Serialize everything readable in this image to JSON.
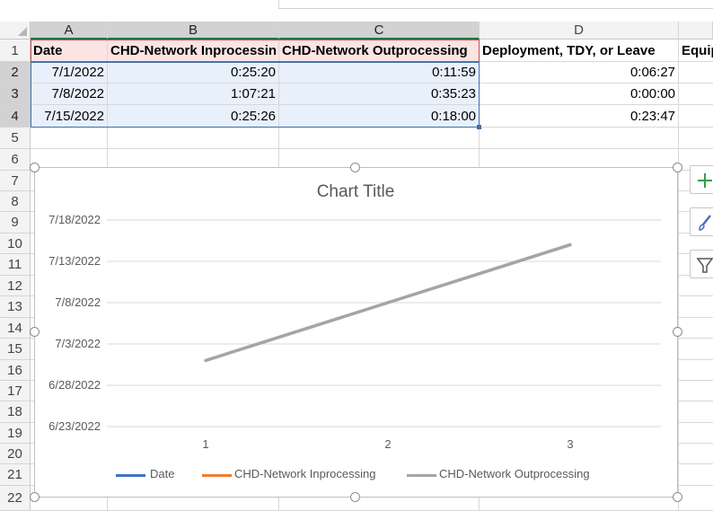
{
  "columns": [
    "A",
    "B",
    "C",
    "D",
    "Equi"
  ],
  "rows": [
    "1",
    "2",
    "3",
    "4",
    "5",
    "6",
    "7",
    "8",
    "9",
    "10",
    "11",
    "12",
    "13",
    "14",
    "15",
    "16",
    "17",
    "18",
    "19",
    "20",
    "21",
    "22"
  ],
  "headers": {
    "a": "Date",
    "b": "CHD-Network Inprocessin",
    "c": "CHD-Network Outprocessing",
    "d": "Deployment, TDY, or Leave",
    "e": "Equip"
  },
  "data_rows": [
    {
      "a": "7/1/2022",
      "b": "0:25:20",
      "c": "0:11:59",
      "d": "0:06:27"
    },
    {
      "a": "7/8/2022",
      "b": "1:07:21",
      "c": "0:35:23",
      "d": "0:00:00"
    },
    {
      "a": "7/15/2022",
      "b": "0:25:26",
      "c": "0:18:00",
      "d": "0:23:47"
    }
  ],
  "chart": {
    "title": "Chart Title",
    "y_ticks": [
      "7/18/2022",
      "7/13/2022",
      "7/8/2022",
      "7/3/2022",
      "6/28/2022",
      "6/23/2022"
    ],
    "x_ticks": [
      "1",
      "2",
      "3"
    ],
    "legend": [
      "Date",
      "CHD-Network Inprocessing",
      "CHD-Network Outprocessing"
    ],
    "colors": {
      "date": "#4472c4",
      "inprocessing": "#ed7d31",
      "outprocessing": "#a5a5a5"
    },
    "side_buttons": [
      "plus-icon",
      "brush-icon",
      "filter-icon"
    ]
  },
  "chart_data": {
    "type": "line",
    "title": "Chart Title",
    "x": [
      1,
      2,
      3
    ],
    "ylim": [
      "6/23/2022",
      "7/18/2022"
    ],
    "series": [
      {
        "name": "Date",
        "values": [
          "7/1/2022",
          "7/8/2022",
          "7/15/2022"
        ]
      },
      {
        "name": "CHD-Network Inprocessing",
        "values": [
          "0:25:20",
          "1:07:21",
          "0:25:26"
        ]
      },
      {
        "name": "CHD-Network Outprocessing",
        "values": [
          "0:11:59",
          "0:35:23",
          "0:18:00"
        ]
      }
    ],
    "grid": true,
    "legend_position": "bottom"
  }
}
